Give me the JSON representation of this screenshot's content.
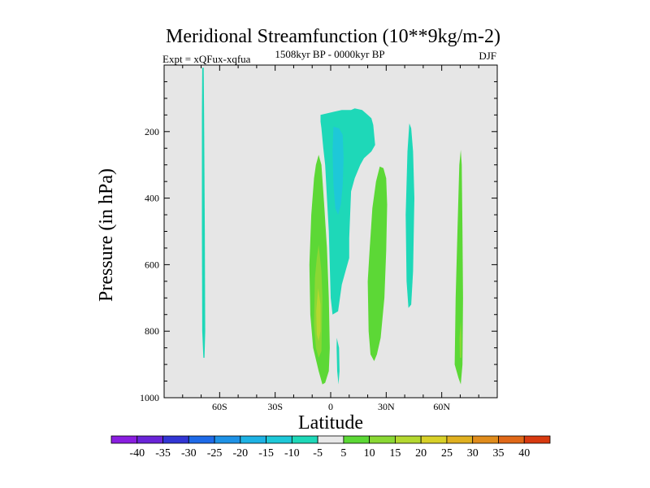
{
  "chart_data": {
    "type": "heatmap",
    "title": "Meridional Streamfunction (10**9kg/m-2)",
    "subtitle_left": "Expt = xQFux-xqfua",
    "subtitle_center": "1508kyr BP - 0000kyr BP",
    "subtitle_right": "DJF",
    "xlabel": "Latitude",
    "ylabel": "Pressure (in hPa)",
    "xlim": [
      -90,
      90
    ],
    "ylim": [
      0,
      1000
    ],
    "y_inverted": true,
    "xticks": [
      {
        "value": -60,
        "label": "60S"
      },
      {
        "value": -30,
        "label": "30S"
      },
      {
        "value": 0,
        "label": "0"
      },
      {
        "value": 30,
        "label": "30N"
      },
      {
        "value": 60,
        "label": "60N"
      }
    ],
    "yticks": [
      {
        "value": 200,
        "label": "200"
      },
      {
        "value": 400,
        "label": "400"
      },
      {
        "value": 600,
        "label": "600"
      },
      {
        "value": 800,
        "label": "800"
      },
      {
        "value": 1000,
        "label": "1000"
      }
    ],
    "colorbar": {
      "labels": [
        "-40",
        "-35",
        "-30",
        "-25",
        "-20",
        "-15",
        "-10",
        "-5",
        "5",
        "10",
        "15",
        "20",
        "25",
        "30",
        "35",
        "40"
      ],
      "colors": [
        "#8a1ee0",
        "#6a24d8",
        "#3236d4",
        "#1e6ae8",
        "#1e92e6",
        "#1eb2e4",
        "#1ec8d8",
        "#1ed8b8",
        "#e8e8e8",
        "#5cd836",
        "#8ad834",
        "#b4d830",
        "#d8d028",
        "#e0b020",
        "#e08c1c",
        "#e06818",
        "#d83a10"
      ]
    },
    "regions": [
      {
        "name": "south-polar-cell",
        "category": "-5 to 5",
        "points": [
          [
            -69.4,
            8
          ],
          [
            -68.6,
            8
          ],
          [
            -68.4,
            150
          ],
          [
            -68.0,
            500
          ],
          [
            -67.8,
            800
          ],
          [
            -68.2,
            880
          ],
          [
            -68.8,
            880
          ],
          [
            -69.4,
            800
          ],
          [
            -69.6,
            500
          ],
          [
            -69.6,
            150
          ]
        ]
      },
      {
        "name": "equatorial-negative-cell",
        "category": "-5 to 5",
        "points": [
          [
            -5.5,
            150
          ],
          [
            2,
            140
          ],
          [
            6,
            135
          ],
          [
            9,
            135
          ],
          [
            11,
            135
          ],
          [
            13,
            130
          ],
          [
            17,
            135
          ],
          [
            20,
            150
          ],
          [
            22,
            160
          ],
          [
            23,
            180
          ],
          [
            24,
            240
          ],
          [
            22,
            260
          ],
          [
            18,
            280
          ],
          [
            16,
            300
          ],
          [
            13,
            340
          ],
          [
            11,
            380
          ],
          [
            10,
            520
          ],
          [
            10,
            580
          ],
          [
            8,
            620
          ],
          [
            6,
            660
          ],
          [
            5,
            700
          ],
          [
            4,
            740
          ],
          [
            1,
            750
          ],
          [
            0,
            700
          ],
          [
            -1,
            500
          ],
          [
            -2,
            400
          ],
          [
            -3,
            300
          ],
          [
            -4,
            250
          ],
          [
            -5,
            190
          ],
          [
            -5.5,
            170
          ]
        ]
      },
      {
        "name": "equatorial-negative-core",
        "category": "-10 to -5",
        "points": [
          [
            1.5,
            185
          ],
          [
            4.5,
            190
          ],
          [
            6.5,
            210
          ],
          [
            7,
            280
          ],
          [
            6.5,
            360
          ],
          [
            5.5,
            420
          ],
          [
            4,
            450
          ],
          [
            2.5,
            430
          ],
          [
            1.5,
            360
          ],
          [
            1,
            260
          ]
        ]
      },
      {
        "name": "equatorial-positive-cell",
        "category": "5 to 10",
        "points": [
          [
            -6.5,
            270
          ],
          [
            -5,
            300
          ],
          [
            -3.5,
            420
          ],
          [
            -2,
            550
          ],
          [
            -1,
            700
          ],
          [
            -0.5,
            850
          ],
          [
            -1,
            920
          ],
          [
            -3,
            955
          ],
          [
            -4.5,
            960
          ],
          [
            -6.5,
            920
          ],
          [
            -9.5,
            850
          ],
          [
            -11,
            750
          ],
          [
            -11.5,
            600
          ],
          [
            -10.5,
            450
          ],
          [
            -9,
            340
          ],
          [
            -8,
            300
          ]
        ]
      },
      {
        "name": "equatorial-positive-core",
        "category": "10 to 15",
        "points": [
          [
            -6.5,
            540
          ],
          [
            -5,
            620
          ],
          [
            -4.5,
            700
          ],
          [
            -5,
            860
          ],
          [
            -6.5,
            880
          ],
          [
            -8,
            850
          ],
          [
            -9,
            780
          ],
          [
            -8.5,
            640
          ],
          [
            -7.5,
            580
          ]
        ]
      },
      {
        "name": "equatorial-positive-inner",
        "category": "15 to 20",
        "points": [
          [
            -6.8,
            670
          ],
          [
            -5.5,
            720
          ],
          [
            -5.5,
            800
          ],
          [
            -6.5,
            830
          ],
          [
            -7.5,
            810
          ],
          [
            -7.8,
            740
          ]
        ]
      },
      {
        "name": "surface-sliver",
        "category": "-5 to 5",
        "points": [
          [
            3.3,
            820
          ],
          [
            4.5,
            850
          ],
          [
            4.8,
            920
          ],
          [
            4.2,
            960
          ],
          [
            3.5,
            920
          ],
          [
            3.2,
            850
          ]
        ]
      },
      {
        "name": "subtropical-north-cell",
        "category": "5 to 10",
        "points": [
          [
            26.5,
            305
          ],
          [
            28.5,
            310
          ],
          [
            30,
            340
          ],
          [
            30.5,
            420
          ],
          [
            30,
            560
          ],
          [
            29,
            700
          ],
          [
            27,
            820
          ],
          [
            25,
            870
          ],
          [
            23.5,
            890
          ],
          [
            21.5,
            870
          ],
          [
            20.5,
            800
          ],
          [
            20,
            650
          ],
          [
            21,
            560
          ],
          [
            22.5,
            430
          ],
          [
            24.5,
            350
          ]
        ]
      },
      {
        "name": "midlat-north-cell",
        "category": "-5 to 5",
        "points": [
          [
            42.5,
            175
          ],
          [
            43.5,
            190
          ],
          [
            44.5,
            260
          ],
          [
            45.2,
            400
          ],
          [
            44.5,
            620
          ],
          [
            43.5,
            720
          ],
          [
            42,
            730
          ],
          [
            41,
            650
          ],
          [
            40.5,
            450
          ],
          [
            41.5,
            260
          ]
        ]
      },
      {
        "name": "north-polar-cell",
        "category": "5 to 10",
        "points": [
          [
            70.3,
            255
          ],
          [
            70.8,
            300
          ],
          [
            71.2,
            500
          ],
          [
            71.5,
            700
          ],
          [
            71.2,
            900
          ],
          [
            70.3,
            960
          ],
          [
            69,
            940
          ],
          [
            67,
            900
          ],
          [
            67.5,
            700
          ],
          [
            68.5,
            500
          ],
          [
            69.5,
            300
          ]
        ]
      },
      {
        "name": "north-polar-core",
        "category": "10 to 15",
        "points": [
          [
            70.3,
            770
          ],
          [
            70.7,
            820
          ],
          [
            70.6,
            880
          ],
          [
            69.8,
            880
          ],
          [
            69.6,
            820
          ]
        ]
      }
    ]
  }
}
